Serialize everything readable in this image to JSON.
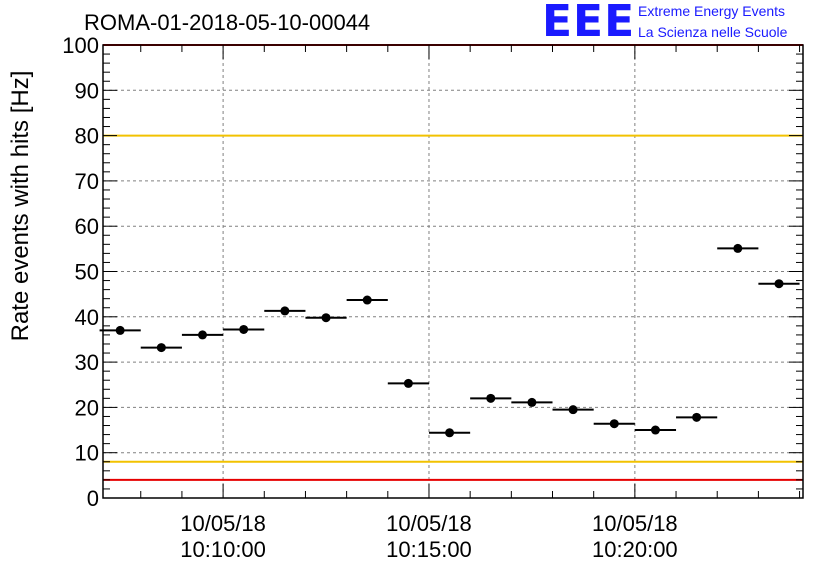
{
  "header": {
    "run_title": "ROMA-01-2018-05-10-00044",
    "logo_text": "EEE",
    "org_line1": "Extreme Energy Events",
    "org_line2": "La Scienza nelle Scuole"
  },
  "colors": {
    "points": "#000000",
    "limit_red": "#e60000",
    "limit_yellow": "#f2c200",
    "grid": "#808080",
    "logo_blue": "#1a1aff"
  },
  "chart_data": {
    "type": "scatter",
    "title": "ROMA-01-2018-05-10-00044",
    "xlabel": "",
    "ylabel": "Rate events with hits [Hz]",
    "ylim": [
      0,
      100
    ],
    "y_ticks": [
      "0",
      "10",
      "20",
      "30",
      "40",
      "50",
      "60",
      "70",
      "80",
      "90",
      "100"
    ],
    "x_tick_labels": [
      {
        "date": "10/05/18",
        "time": "10:10:00"
      },
      {
        "date": "10/05/18",
        "time": "10:15:00"
      },
      {
        "date": "10/05/18",
        "time": "10:20:00"
      }
    ],
    "grid": true,
    "reference_lines": [
      {
        "y": 100,
        "color": "red"
      },
      {
        "y": 80,
        "color": "yellow"
      },
      {
        "y": 8,
        "color": "yellow"
      },
      {
        "y": 4,
        "color": "red"
      }
    ],
    "series": [
      {
        "x": [
          "10:07:30",
          "10:08:30",
          "10:09:30",
          "10:10:30",
          "10:11:30",
          "10:12:30",
          "10:13:30",
          "10:14:30",
          "10:15:30",
          "10:16:30",
          "10:17:30",
          "10:18:30",
          "10:19:30",
          "10:20:30",
          "10:21:30",
          "10:22:30",
          "10:23:30"
        ],
        "values": [
          37,
          33.2,
          36,
          37.2,
          41.3,
          39.8,
          43.7,
          25.3,
          14.4,
          22,
          21.1,
          19.5,
          16.4,
          15,
          17.8,
          55.1,
          47.3
        ]
      }
    ]
  }
}
